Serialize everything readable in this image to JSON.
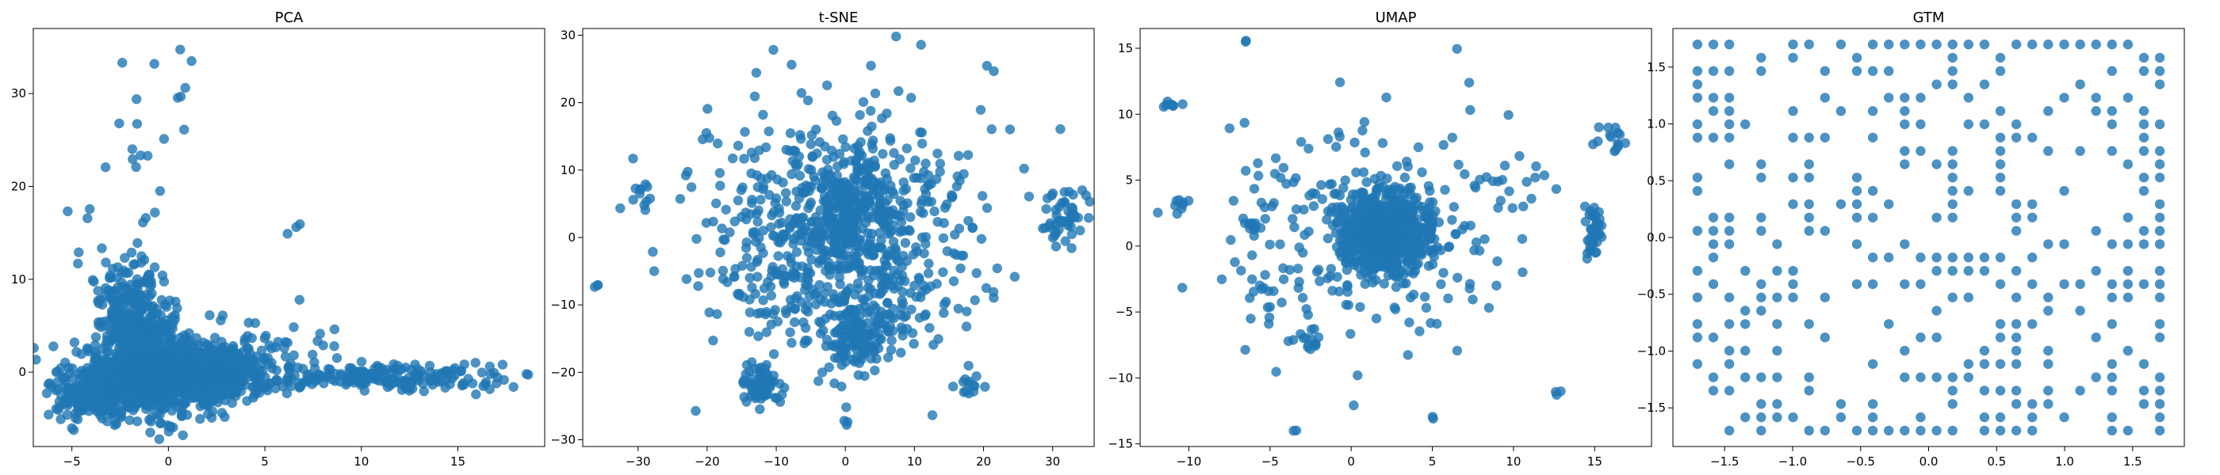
{
  "figure": {
    "background": "#ffffff",
    "marker_color": "#1f77b4",
    "marker_alpha": 0.8
  },
  "chart_data": [
    {
      "type": "scatter",
      "title": "PCA",
      "xlim": [
        -7,
        19.5
      ],
      "ylim": [
        -8,
        37
      ],
      "xticks": [
        -5,
        0,
        5,
        10,
        15
      ],
      "yticks": [
        0,
        10,
        20,
        30
      ],
      "grid": false,
      "legend": "none",
      "point_groups": [
        {
          "cx": -1.0,
          "cy": -0.5,
          "sx": 2.0,
          "sy": 2.0,
          "n": 900
        },
        {
          "cx": 2.5,
          "cy": 0.0,
          "sx": 1.5,
          "sy": 1.5,
          "n": 350
        },
        {
          "cx": -2.0,
          "cy": 7.5,
          "sx": 1.0,
          "sy": 2.5,
          "n": 180
        },
        {
          "cx": -1.0,
          "cy": 4.0,
          "sx": 1.0,
          "sy": 1.5,
          "n": 120
        },
        {
          "cx": 11.0,
          "cy": -0.5,
          "sx": 3.5,
          "sy": 0.7,
          "n": 200
        },
        {
          "cx": -4.0,
          "cy": -3.0,
          "sx": 1.2,
          "sy": 1.0,
          "n": 120
        },
        {
          "cx": 0.0,
          "cy": 30.0,
          "sx": 1.2,
          "sy": 4.0,
          "n": 12
        },
        {
          "cx": -1.5,
          "cy": 24.5,
          "sx": 0.5,
          "sy": 1.5,
          "n": 6
        },
        {
          "cx": 6.5,
          "cy": 15.5,
          "sx": 0.2,
          "sy": 0.6,
          "n": 3
        },
        {
          "cx": -3.0,
          "cy": 16.0,
          "sx": 2.0,
          "sy": 3.0,
          "n": 10
        },
        {
          "cx": 6.0,
          "cy": 3.0,
          "sx": 2.0,
          "sy": 2.0,
          "n": 30
        }
      ]
    },
    {
      "type": "scatter",
      "title": "t-SNE",
      "xlim": [
        -38,
        36
      ],
      "ylim": [
        -31,
        31
      ],
      "xticks": [
        -30,
        -20,
        -10,
        0,
        10,
        20,
        30
      ],
      "yticks": [
        -30,
        -20,
        -10,
        0,
        10,
        20,
        30
      ],
      "grid": false,
      "legend": "none",
      "point_groups": [
        {
          "cx": 0.0,
          "cy": 0.0,
          "sx": 10.0,
          "sy": 10.0,
          "n": 700
        },
        {
          "cx": 0.0,
          "cy": 3.0,
          "sx": 3.5,
          "sy": 3.5,
          "n": 200
        },
        {
          "cx": 2.0,
          "cy": -14.0,
          "sx": 2.5,
          "sy": 2.5,
          "n": 120
        },
        {
          "cx": -12.0,
          "cy": -22.0,
          "sx": 1.5,
          "sy": 1.5,
          "n": 60
        },
        {
          "cx": 32.0,
          "cy": 3.0,
          "sx": 1.5,
          "sy": 2.0,
          "n": 50
        },
        {
          "cx": -36.0,
          "cy": -7.0,
          "sx": 0.2,
          "sy": 0.2,
          "n": 3
        },
        {
          "cx": 0.0,
          "cy": -27.5,
          "sx": 0.3,
          "sy": 0.3,
          "n": 3
        },
        {
          "cx": 18.0,
          "cy": -22.0,
          "sx": 1.0,
          "sy": 1.0,
          "n": 12
        },
        {
          "cx": -30.0,
          "cy": 6.0,
          "sx": 1.0,
          "sy": 1.0,
          "n": 12
        }
      ]
    },
    {
      "type": "scatter",
      "title": "UMAP",
      "xlim": [
        -13,
        18.5
      ],
      "ylim": [
        -15.2,
        16.5
      ],
      "xticks": [
        -10,
        -5,
        0,
        5,
        10,
        15
      ],
      "yticks": [
        -15,
        -10,
        -5,
        0,
        5,
        10,
        15
      ],
      "grid": false,
      "legend": "none",
      "point_groups": [
        {
          "cx": 2.0,
          "cy": 1.0,
          "sx": 1.5,
          "sy": 1.5,
          "n": 700
        },
        {
          "cx": 1.0,
          "cy": 0.5,
          "sx": 5.0,
          "sy": 5.0,
          "n": 200
        },
        {
          "cx": 15.0,
          "cy": 1.0,
          "sx": 0.3,
          "sy": 1.0,
          "n": 40
        },
        {
          "cx": 16.0,
          "cy": 8.0,
          "sx": 0.5,
          "sy": 0.5,
          "n": 15
        },
        {
          "cx": -11.0,
          "cy": 10.5,
          "sx": 0.3,
          "sy": 0.3,
          "n": 8
        },
        {
          "cx": -10.5,
          "cy": 3.0,
          "sx": 0.3,
          "sy": 0.3,
          "n": 8
        },
        {
          "cx": -6.0,
          "cy": 1.5,
          "sx": 0.3,
          "sy": 0.3,
          "n": 12
        },
        {
          "cx": -6.5,
          "cy": 15.5,
          "sx": 0.1,
          "sy": 0.1,
          "n": 2
        },
        {
          "cx": -2.5,
          "cy": -7.0,
          "sx": 0.5,
          "sy": 0.5,
          "n": 12
        },
        {
          "cx": -3.5,
          "cy": -14.0,
          "sx": 0.1,
          "sy": 0.1,
          "n": 2
        },
        {
          "cx": 5.0,
          "cy": -13.0,
          "sx": 0.1,
          "sy": 0.1,
          "n": 2
        },
        {
          "cx": 12.5,
          "cy": -11.0,
          "sx": 0.2,
          "sy": 0.2,
          "n": 3
        },
        {
          "cx": 10.0,
          "cy": 5.0,
          "sx": 1.5,
          "sy": 1.0,
          "n": 15
        },
        {
          "cx": -5.0,
          "cy": -3.5,
          "sx": 1.0,
          "sy": 0.8,
          "n": 15
        }
      ]
    },
    {
      "type": "scatter",
      "title": "GTM",
      "xlim": [
        -1.88,
        1.88
      ],
      "ylim": [
        -1.84,
        1.84
      ],
      "xticks": [
        -1.5,
        -1.0,
        -0.5,
        0.0,
        0.5,
        1.0,
        1.5
      ],
      "yticks": [
        -1.5,
        -1.0,
        -0.5,
        0.0,
        0.5,
        1.0,
        1.5
      ],
      "tick_decimals": 1,
      "grid": false,
      "legend": "none",
      "lattice": {
        "min": -1.7,
        "max": 1.7,
        "n": 30
      },
      "occupancy": 0.32
    }
  ]
}
